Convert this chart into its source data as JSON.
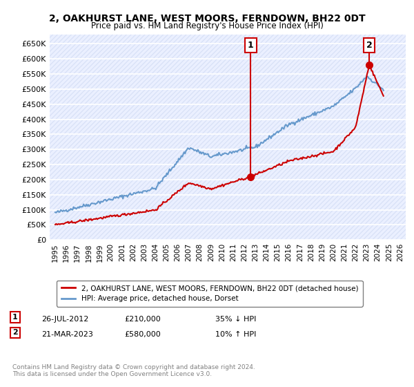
{
  "title": "2, OAKHURST LANE, WEST MOORS, FERNDOWN, BH22 0DT",
  "subtitle": "Price paid vs. HM Land Registry's House Price Index (HPI)",
  "red_label": "2, OAKHURST LANE, WEST MOORS, FERNDOWN, BH22 0DT (detached house)",
  "blue_label": "HPI: Average price, detached house, Dorset",
  "annotation1_label": "1",
  "annotation1_date": "26-JUL-2012",
  "annotation1_price": "£210,000",
  "annotation1_hpi": "35% ↓ HPI",
  "annotation2_label": "2",
  "annotation2_date": "21-MAR-2023",
  "annotation2_price": "£580,000",
  "annotation2_hpi": "10% ↑ HPI",
  "footer": "Contains HM Land Registry data © Crown copyright and database right 2024.\nThis data is licensed under the Open Government Licence v3.0.",
  "ylim": [
    0,
    680000
  ],
  "yticks": [
    0,
    50000,
    100000,
    150000,
    200000,
    250000,
    300000,
    350000,
    400000,
    450000,
    500000,
    550000,
    600000,
    650000
  ],
  "ytick_labels": [
    "£0",
    "£50K",
    "£100K",
    "£150K",
    "£200K",
    "£250K",
    "£300K",
    "£350K",
    "£400K",
    "£450K",
    "£500K",
    "£550K",
    "£600K",
    "£650K"
  ],
  "red_color": "#cc0000",
  "blue_color": "#6699cc",
  "background_plot": "#f0f4ff",
  "background_fig": "#ffffff",
  "grid_color": "#ffffff",
  "annotation_box_color": "#cc0000",
  "sale1_x": 2012.57,
  "sale1_y": 210000,
  "sale2_x": 2023.22,
  "sale2_y": 580000,
  "xmin": 1994.5,
  "xmax": 2026.5,
  "xtick_years": [
    1995,
    1996,
    1997,
    1998,
    1999,
    2000,
    2001,
    2002,
    2003,
    2004,
    2005,
    2006,
    2007,
    2008,
    2009,
    2010,
    2011,
    2012,
    2013,
    2014,
    2015,
    2016,
    2017,
    2018,
    2019,
    2020,
    2021,
    2022,
    2023,
    2024,
    2025,
    2026
  ]
}
